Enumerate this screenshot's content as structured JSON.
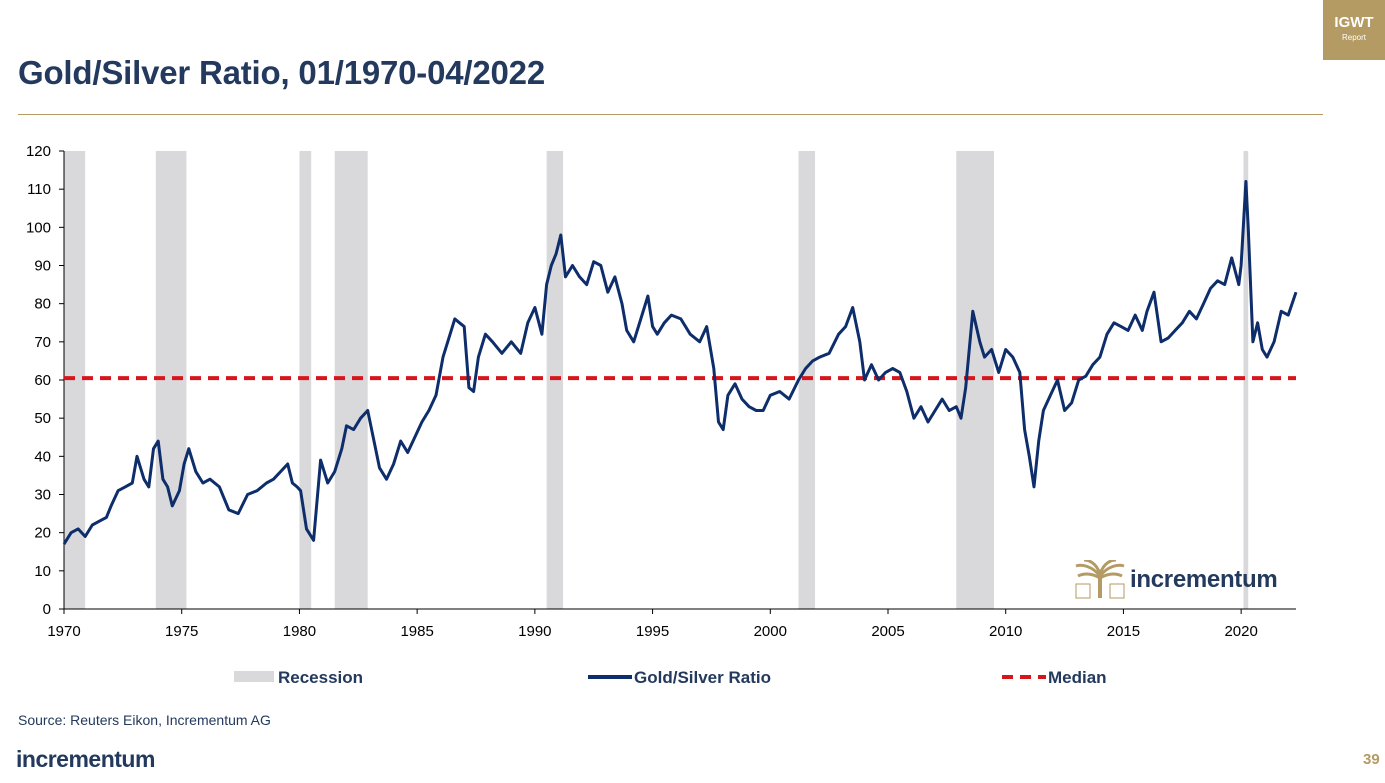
{
  "page": {
    "title": "Gold/Silver Ratio, 01/1970-04/2022",
    "badge_line1": "IGWT",
    "badge_line2": "Report",
    "source": "Source: Reuters Eikon, Incrementum AG",
    "footer_brand": "incrementum",
    "page_number": "39",
    "watermark": "incrementum"
  },
  "colors": {
    "accent_gold": "#b49a63",
    "navy": "#23395d",
    "series_line": "#0e2d6b",
    "median_line": "#d7161c",
    "recession_fill": "#d9d9dc"
  },
  "chart_data": {
    "type": "line",
    "title": "Gold/Silver Ratio, 01/1970-04/2022",
    "xlim": [
      1970,
      2022.33
    ],
    "ylim": [
      0,
      120
    ],
    "x_ticks": [
      "1970",
      "1975",
      "1980",
      "1985",
      "1990",
      "1995",
      "2000",
      "2005",
      "2010",
      "2015",
      "2020"
    ],
    "y_ticks": [
      "0",
      "10",
      "20",
      "30",
      "40",
      "50",
      "60",
      "70",
      "80",
      "90",
      "100",
      "110",
      "120"
    ],
    "grid": false,
    "legend": {
      "placement": "bottom",
      "entries": [
        "Recession",
        "Gold/Silver Ratio",
        "Median"
      ]
    },
    "recessions": [
      {
        "start": 1970.0,
        "end": 1970.9
      },
      {
        "start": 1973.9,
        "end": 1975.2
      },
      {
        "start": 1980.0,
        "end": 1980.5
      },
      {
        "start": 1981.5,
        "end": 1982.9
      },
      {
        "start": 1990.5,
        "end": 1991.2
      },
      {
        "start": 2001.2,
        "end": 2001.9
      },
      {
        "start": 2007.9,
        "end": 2009.5
      },
      {
        "start": 2020.1,
        "end": 2020.3
      }
    ],
    "median": 60.5,
    "series": [
      {
        "name": "Gold/Silver Ratio",
        "x": [
          1970.0,
          1970.3,
          1970.6,
          1970.9,
          1971.2,
          1971.5,
          1971.8,
          1972.0,
          1972.3,
          1972.6,
          1972.9,
          1973.1,
          1973.4,
          1973.6,
          1973.8,
          1974.0,
          1974.2,
          1974.4,
          1974.6,
          1974.9,
          1975.1,
          1975.3,
          1975.6,
          1975.9,
          1976.2,
          1976.6,
          1977.0,
          1977.4,
          1977.8,
          1978.2,
          1978.6,
          1978.9,
          1979.2,
          1979.5,
          1979.7,
          1979.9,
          1980.05,
          1980.3,
          1980.6,
          1980.9,
          1981.2,
          1981.5,
          1981.8,
          1982.0,
          1982.3,
          1982.6,
          1982.9,
          1983.2,
          1983.4,
          1983.7,
          1984.0,
          1984.3,
          1984.6,
          1984.9,
          1985.2,
          1985.5,
          1985.8,
          1986.1,
          1986.4,
          1986.6,
          1986.8,
          1987.0,
          1987.2,
          1987.4,
          1987.6,
          1987.9,
          1988.2,
          1988.6,
          1989.0,
          1989.4,
          1989.7,
          1990.0,
          1990.3,
          1990.5,
          1990.7,
          1990.9,
          1991.1,
          1991.3,
          1991.6,
          1991.9,
          1992.2,
          1992.5,
          1992.8,
          1993.1,
          1993.4,
          1993.7,
          1993.9,
          1994.2,
          1994.5,
          1994.8,
          1995.0,
          1995.2,
          1995.5,
          1995.8,
          1996.2,
          1996.6,
          1997.0,
          1997.3,
          1997.6,
          1997.8,
          1998.0,
          1998.2,
          1998.5,
          1998.8,
          1999.1,
          1999.4,
          1999.7,
          2000.0,
          2000.4,
          2000.8,
          2001.2,
          2001.5,
          2001.8,
          2002.1,
          2002.5,
          2002.9,
          2003.2,
          2003.5,
          2003.8,
          2004.0,
          2004.3,
          2004.6,
          2004.9,
          2005.2,
          2005.5,
          2005.8,
          2006.1,
          2006.4,
          2006.7,
          2007.0,
          2007.3,
          2007.6,
          2007.9,
          2008.1,
          2008.3,
          2008.6,
          2008.9,
          2009.1,
          2009.4,
          2009.7,
          2010.0,
          2010.3,
          2010.6,
          2010.8,
          2011.0,
          2011.2,
          2011.4,
          2011.6,
          2011.9,
          2012.2,
          2012.5,
          2012.8,
          2013.1,
          2013.4,
          2013.7,
          2014.0,
          2014.3,
          2014.6,
          2014.9,
          2015.2,
          2015.5,
          2015.8,
          2016.0,
          2016.3,
          2016.6,
          2016.9,
          2017.2,
          2017.5,
          2017.8,
          2018.1,
          2018.4,
          2018.7,
          2019.0,
          2019.3,
          2019.6,
          2019.9,
          2020.0,
          2020.2,
          2020.3,
          2020.5,
          2020.7,
          2020.9,
          2021.1,
          2021.4,
          2021.7,
          2022.0,
          2022.33
        ],
        "values": [
          17,
          20,
          21,
          19,
          22,
          23,
          24,
          27,
          31,
          32,
          33,
          40,
          34,
          32,
          42,
          44,
          34,
          32,
          27,
          31,
          38,
          42,
          36,
          33,
          34,
          32,
          26,
          25,
          30,
          31,
          33,
          34,
          36,
          38,
          33,
          32,
          31,
          21,
          18,
          39,
          33,
          36,
          42,
          48,
          47,
          50,
          52,
          43,
          37,
          34,
          38,
          44,
          41,
          45,
          49,
          52,
          56,
          66,
          72,
          76,
          75,
          74,
          58,
          57,
          66,
          72,
          70,
          67,
          70,
          67,
          75,
          79,
          72,
          85,
          90,
          93,
          98,
          87,
          90,
          87,
          85,
          91,
          90,
          83,
          87,
          80,
          73,
          70,
          76,
          82,
          74,
          72,
          75,
          77,
          76,
          72,
          70,
          74,
          63,
          49,
          47,
          56,
          59,
          55,
          53,
          52,
          52,
          56,
          57,
          55,
          60,
          63,
          65,
          66,
          67,
          72,
          74,
          79,
          70,
          60,
          64,
          60,
          62,
          63,
          62,
          57,
          50,
          53,
          49,
          52,
          55,
          52,
          53,
          50,
          58,
          78,
          70,
          66,
          68,
          62,
          68,
          66,
          62,
          47,
          40,
          32,
          44,
          52,
          56,
          60,
          52,
          54,
          60,
          61,
          64,
          66,
          72,
          75,
          74,
          73,
          77,
          73,
          78,
          83,
          70,
          71,
          73,
          75,
          78,
          76,
          80,
          84,
          86,
          85,
          92,
          85,
          90,
          112,
          100,
          70,
          75,
          68,
          66,
          70,
          78,
          77,
          83
        ]
      }
    ]
  }
}
